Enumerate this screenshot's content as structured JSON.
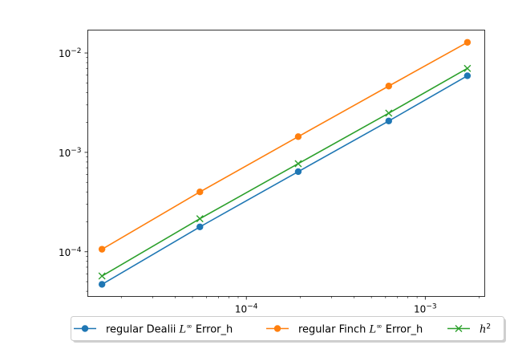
{
  "chart_data": {
    "type": "line",
    "title": "",
    "xlabel": "",
    "ylabel": "",
    "xscale": "log",
    "yscale": "log",
    "xlim": [
      1.3e-05,
      0.00215
    ],
    "ylim": [
      3.55e-05,
      0.017
    ],
    "grid": false,
    "legend_position": "bottom-center",
    "x": [
      1.56e-05,
      5.5e-05,
      0.000195,
      0.000625,
      0.00172
    ],
    "x_ticks": [
      {
        "value": 0.0001,
        "base": "10",
        "exp": "−4"
      },
      {
        "value": 0.001,
        "base": "10",
        "exp": "−3"
      }
    ],
    "y_ticks": [
      {
        "value": 0.0001,
        "base": "10",
        "exp": "−4"
      },
      {
        "value": 0.001,
        "base": "10",
        "exp": "−3"
      },
      {
        "value": 0.01,
        "base": "10",
        "exp": "−2"
      }
    ],
    "series": [
      {
        "name_pre": "regular Dealii ",
        "name_math": "L",
        "name_sup": "∞",
        "name_post": " Error_h",
        "color": "#1f77b4",
        "marker": "circle",
        "values": [
          4.7e-05,
          0.000178,
          0.00064,
          0.00207,
          0.0059
        ]
      },
      {
        "name_pre": "regular Finch ",
        "name_math": "L",
        "name_sup": "∞",
        "name_post": " Error_h",
        "color": "#ff7f0e",
        "marker": "circle",
        "values": [
          0.000106,
          0.0004,
          0.00144,
          0.00465,
          0.0128
        ]
      },
      {
        "name_pre": "",
        "name_math": "h",
        "name_sup": "2",
        "name_post": "",
        "color": "#2ca02c",
        "marker": "x",
        "values": [
          5.7e-05,
          0.000215,
          0.00077,
          0.00248,
          0.007
        ]
      }
    ]
  }
}
